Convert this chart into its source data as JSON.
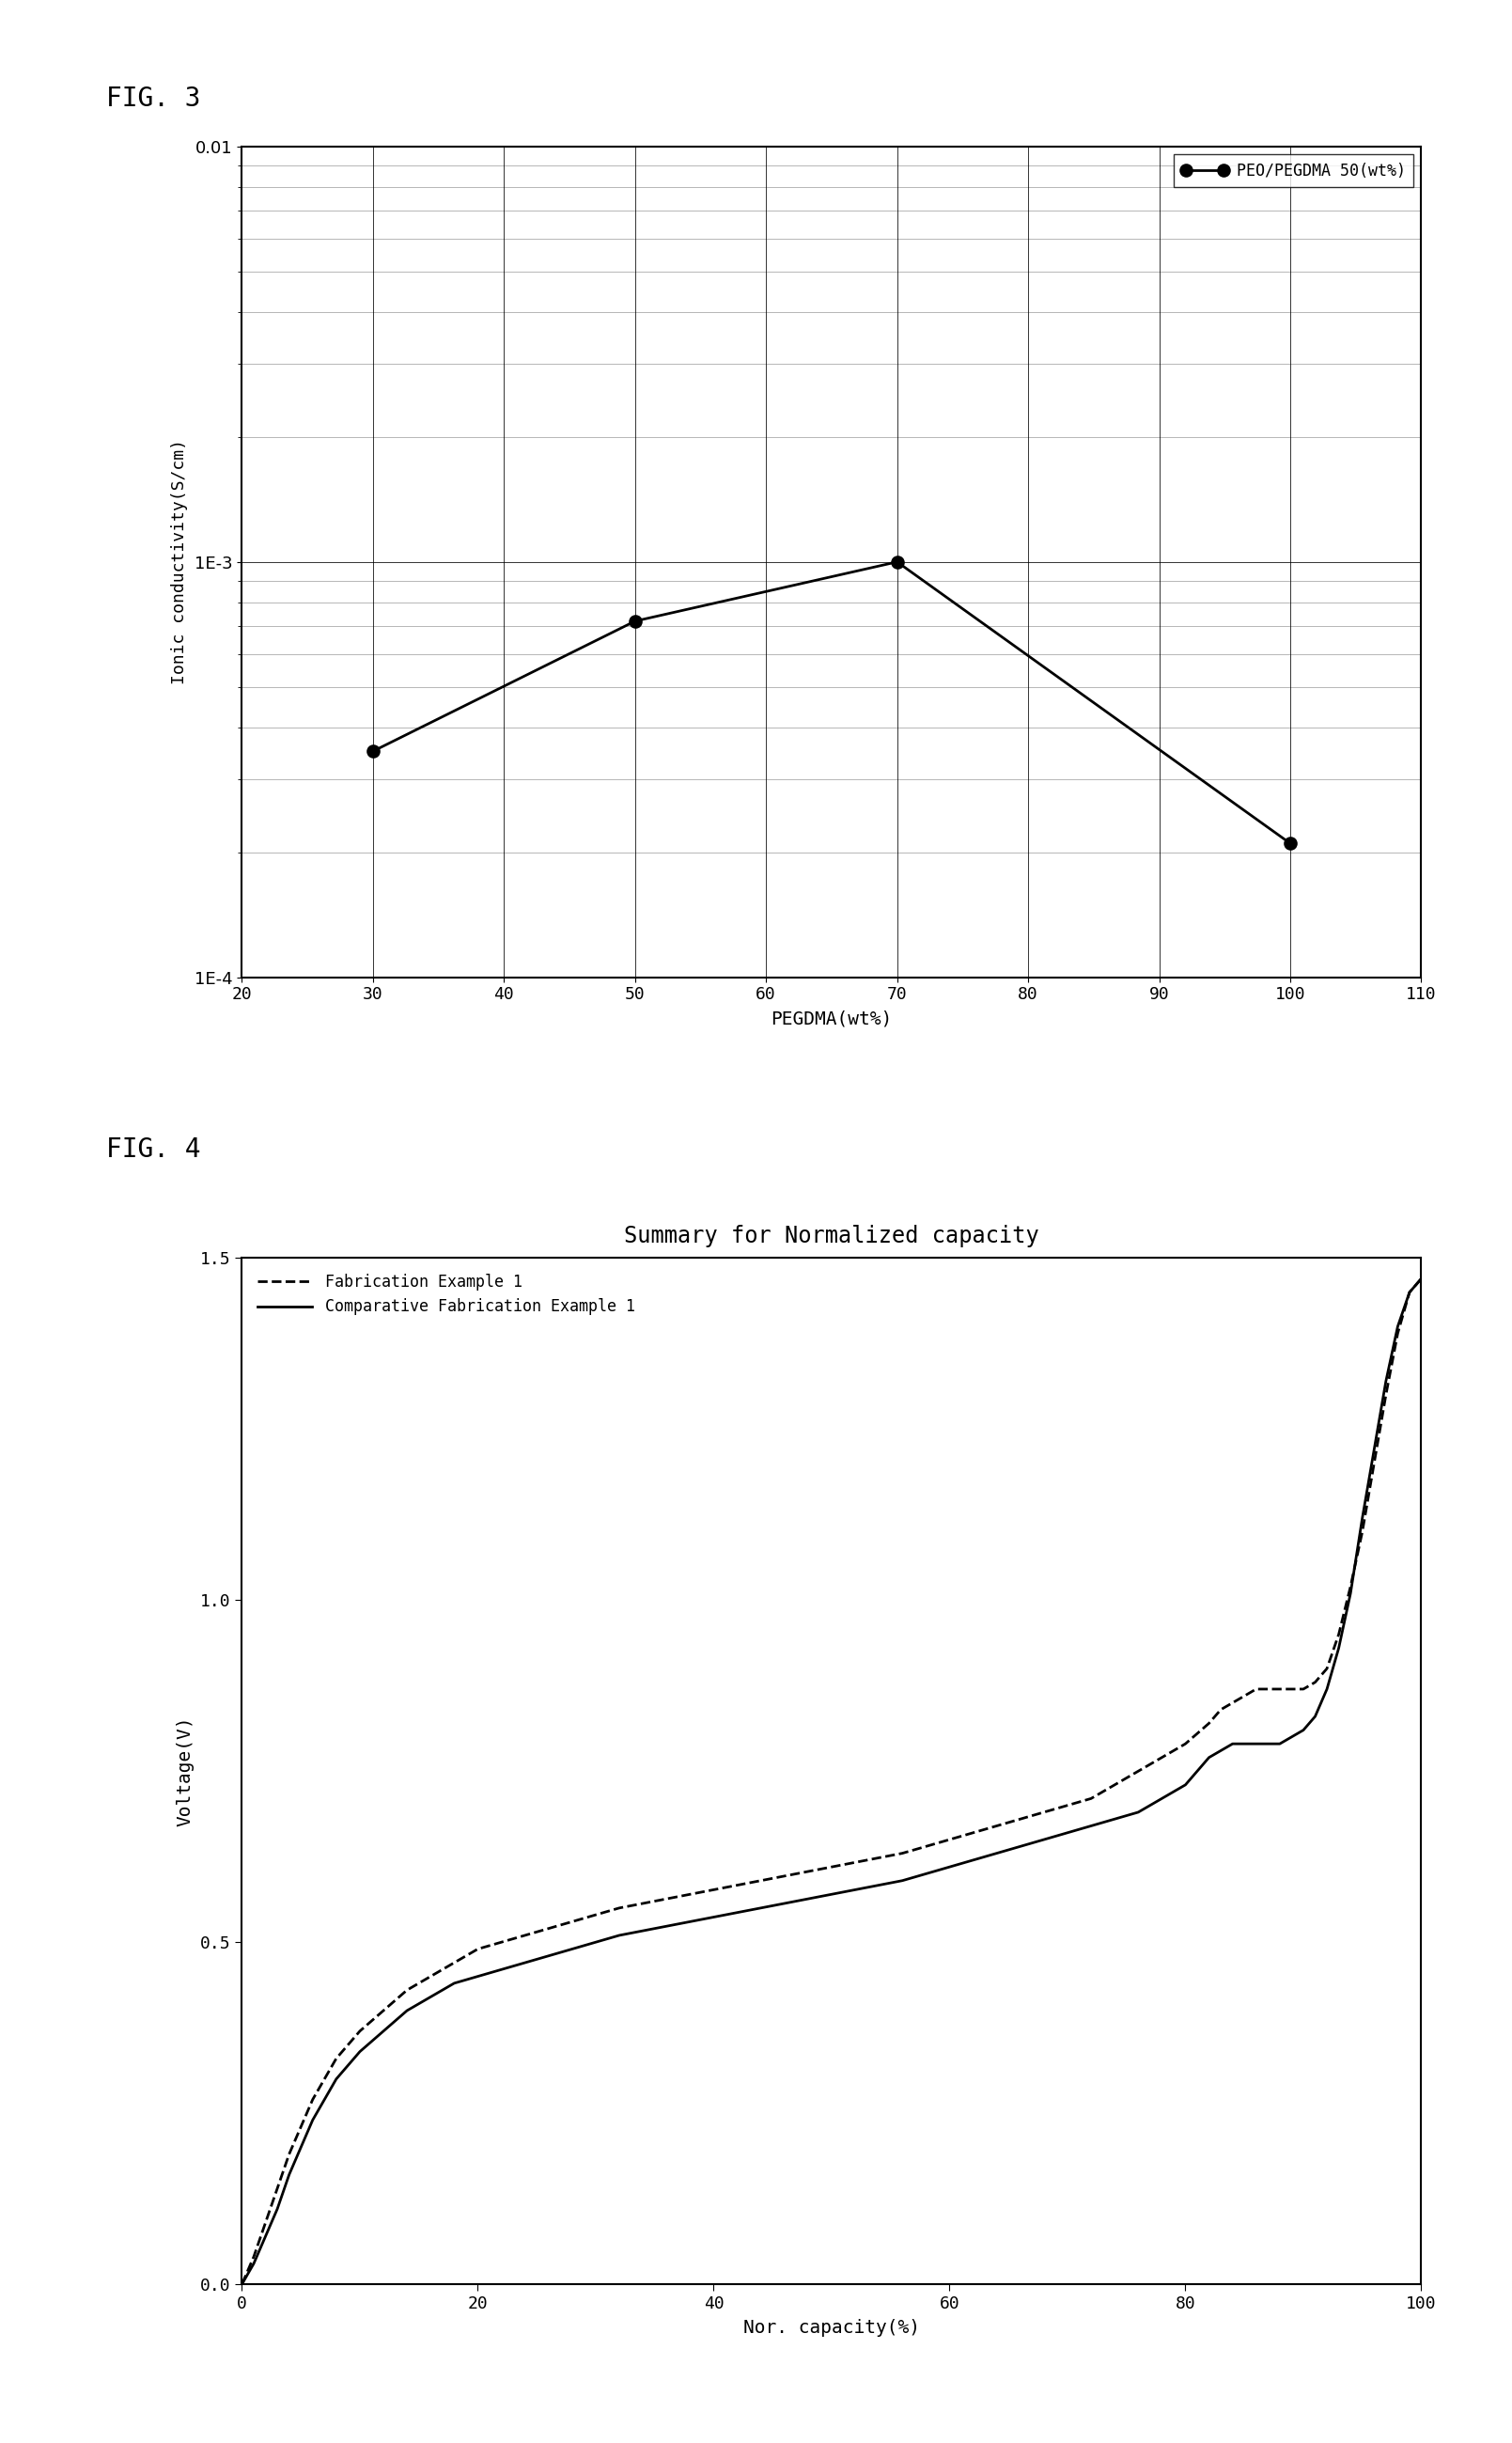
{
  "fig3": {
    "x": [
      30,
      50,
      70,
      100
    ],
    "y": [
      0.00035,
      0.00072,
      0.001,
      0.00021
    ],
    "xlabel": "PEGDMA(wt%)",
    "ylabel": "Ionic conductivity(S/cm)",
    "xlim": [
      20,
      110
    ],
    "xticks": [
      20,
      30,
      40,
      50,
      60,
      70,
      80,
      90,
      100,
      110
    ],
    "ylim_log": [
      0.0001,
      0.01
    ],
    "legend_label": "PEO/PEGDMA 50(wt%)"
  },
  "fig4": {
    "title": "Summary for Normalized capacity",
    "xlabel": "Nor. capacity(%)",
    "ylabel": "Voltage(V)",
    "xlim": [
      0,
      100
    ],
    "ylim": [
      0.0,
      1.5
    ],
    "xticks": [
      0,
      20,
      40,
      60,
      80,
      100
    ],
    "yticks": [
      0.0,
      0.5,
      1.0,
      1.5
    ],
    "legend": [
      "Fabrication Example 1",
      "Comparative Fabrication Example 1"
    ],
    "x_fab": [
      0,
      1,
      2,
      3,
      4,
      5,
      6,
      7,
      8,
      9,
      10,
      12,
      14,
      16,
      18,
      20,
      22,
      24,
      26,
      28,
      30,
      32,
      35,
      38,
      41,
      44,
      47,
      50,
      53,
      56,
      58,
      60,
      62,
      64,
      66,
      68,
      70,
      72,
      74,
      76,
      78,
      80,
      82,
      83,
      84,
      85,
      86,
      87,
      88,
      89,
      90,
      91,
      92,
      93,
      94,
      95,
      96,
      97,
      98,
      99,
      100
    ],
    "y_fab": [
      0.0,
      0.04,
      0.09,
      0.14,
      0.19,
      0.23,
      0.27,
      0.3,
      0.33,
      0.35,
      0.37,
      0.4,
      0.43,
      0.45,
      0.47,
      0.49,
      0.5,
      0.51,
      0.52,
      0.53,
      0.54,
      0.55,
      0.56,
      0.57,
      0.58,
      0.59,
      0.6,
      0.61,
      0.62,
      0.63,
      0.64,
      0.65,
      0.66,
      0.67,
      0.68,
      0.69,
      0.7,
      0.71,
      0.73,
      0.75,
      0.77,
      0.79,
      0.82,
      0.84,
      0.85,
      0.86,
      0.87,
      0.87,
      0.87,
      0.87,
      0.87,
      0.88,
      0.9,
      0.95,
      1.02,
      1.1,
      1.2,
      1.3,
      1.39,
      1.45,
      1.47
    ],
    "x_comp": [
      0,
      1,
      2,
      3,
      4,
      5,
      6,
      7,
      8,
      9,
      10,
      12,
      14,
      16,
      18,
      20,
      22,
      24,
      26,
      28,
      30,
      32,
      35,
      38,
      41,
      44,
      47,
      50,
      53,
      56,
      58,
      60,
      62,
      64,
      66,
      68,
      70,
      72,
      74,
      76,
      78,
      80,
      81,
      82,
      83,
      84,
      85,
      86,
      87,
      88,
      89,
      90,
      91,
      92,
      93,
      94,
      95,
      96,
      97,
      98,
      99,
      100
    ],
    "y_comp": [
      0.0,
      0.03,
      0.07,
      0.11,
      0.16,
      0.2,
      0.24,
      0.27,
      0.3,
      0.32,
      0.34,
      0.37,
      0.4,
      0.42,
      0.44,
      0.45,
      0.46,
      0.47,
      0.48,
      0.49,
      0.5,
      0.51,
      0.52,
      0.53,
      0.54,
      0.55,
      0.56,
      0.57,
      0.58,
      0.59,
      0.6,
      0.61,
      0.62,
      0.63,
      0.64,
      0.65,
      0.66,
      0.67,
      0.68,
      0.69,
      0.71,
      0.73,
      0.75,
      0.77,
      0.78,
      0.79,
      0.79,
      0.79,
      0.79,
      0.79,
      0.8,
      0.81,
      0.83,
      0.87,
      0.93,
      1.01,
      1.12,
      1.22,
      1.32,
      1.4,
      1.45,
      1.47
    ]
  },
  "background_color": "#ffffff",
  "line_color": "#000000"
}
